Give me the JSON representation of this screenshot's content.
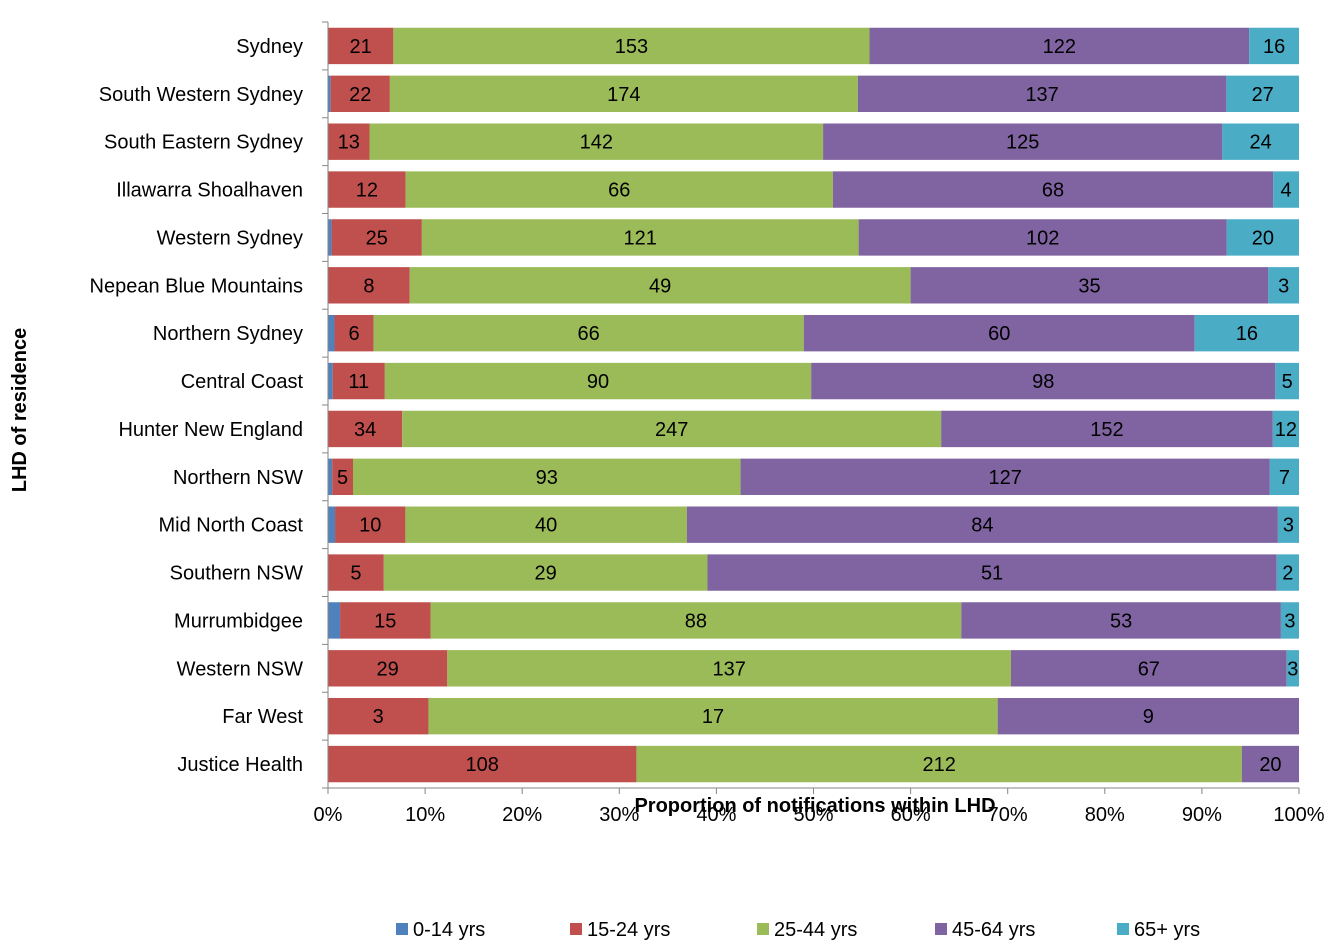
{
  "chart_data": {
    "type": "bar",
    "orientation": "horizontal",
    "stacked": "percent",
    "title": "",
    "xlabel": "Proportion of notifications within LHD",
    "ylabel": "LHD of residence",
    "xlim": [
      0,
      100
    ],
    "x_ticks": [
      "0%",
      "10%",
      "20%",
      "30%",
      "40%",
      "50%",
      "60%",
      "70%",
      "80%",
      "90%",
      "100%"
    ],
    "grid": false,
    "legend_position": "bottom",
    "categories": [
      "Sydney",
      "South Western Sydney",
      "South Eastern Sydney",
      "Illawarra Shoalhaven",
      "Western Sydney",
      "Nepean Blue Mountains",
      "Northern Sydney",
      "Central Coast",
      "Hunter New England",
      "Northern NSW",
      "Mid North Coast",
      "Southern NSW",
      "Murrumbidgee",
      "Western NSW",
      "Far West",
      "Justice Health"
    ],
    "series": [
      {
        "name": "0-14 yrs",
        "color": "#4F81BD",
        "values": [
          0,
          1,
          0,
          0,
          1,
          0,
          1,
          1,
          0,
          1,
          1,
          0,
          2,
          0,
          0,
          0
        ]
      },
      {
        "name": "15-24 yrs",
        "color": "#C0504D",
        "values": [
          21,
          22,
          13,
          12,
          25,
          8,
          6,
          11,
          34,
          5,
          10,
          5,
          15,
          29,
          3,
          108
        ]
      },
      {
        "name": "25-44 yrs",
        "color": "#9BBB59",
        "values": [
          153,
          174,
          142,
          66,
          121,
          49,
          66,
          90,
          247,
          93,
          40,
          29,
          88,
          137,
          17,
          212
        ]
      },
      {
        "name": "45-64 yrs",
        "color": "#8064A2",
        "values": [
          122,
          137,
          125,
          68,
          102,
          35,
          60,
          98,
          152,
          127,
          84,
          51,
          53,
          67,
          9,
          20
        ]
      },
      {
        "name": "65+ yrs",
        "color": "#4BACC6",
        "values": [
          16,
          27,
          24,
          4,
          20,
          3,
          16,
          5,
          12,
          7,
          3,
          2,
          3,
          3,
          0,
          0
        ]
      }
    ]
  }
}
